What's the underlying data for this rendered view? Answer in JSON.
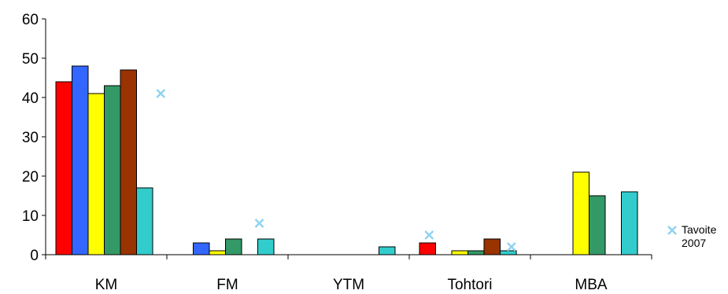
{
  "chart_data": {
    "type": "bar",
    "categories": [
      "KM",
      "FM",
      "YTM",
      "Tohtori",
      "MBA"
    ],
    "ylim": [
      0,
      60
    ],
    "yticks": [
      0,
      10,
      20,
      30,
      40,
      50,
      60
    ],
    "grid": false,
    "legend_position": "right",
    "series": [
      {
        "color": "#ff0000",
        "values": [
          44,
          0,
          0,
          3,
          0
        ]
      },
      {
        "color": "#3366ff",
        "values": [
          48,
          3,
          0,
          0,
          0
        ]
      },
      {
        "color": "#ffff00",
        "values": [
          41,
          1,
          0,
          1,
          21
        ]
      },
      {
        "color": "#339966",
        "values": [
          43,
          4,
          0,
          1,
          15
        ]
      },
      {
        "color": "#993300",
        "values": [
          47,
          0,
          0,
          4,
          0
        ]
      },
      {
        "color": "#33cccc",
        "values": [
          17,
          4,
          2,
          1,
          16
        ]
      }
    ],
    "target": {
      "name_line1": "Tavoite",
      "name_line2": "2007",
      "color": "#8fd3f0",
      "values": [
        41,
        8,
        null,
        5,
        null
      ],
      "values_alt": [
        null,
        null,
        null,
        2,
        null
      ]
    }
  }
}
